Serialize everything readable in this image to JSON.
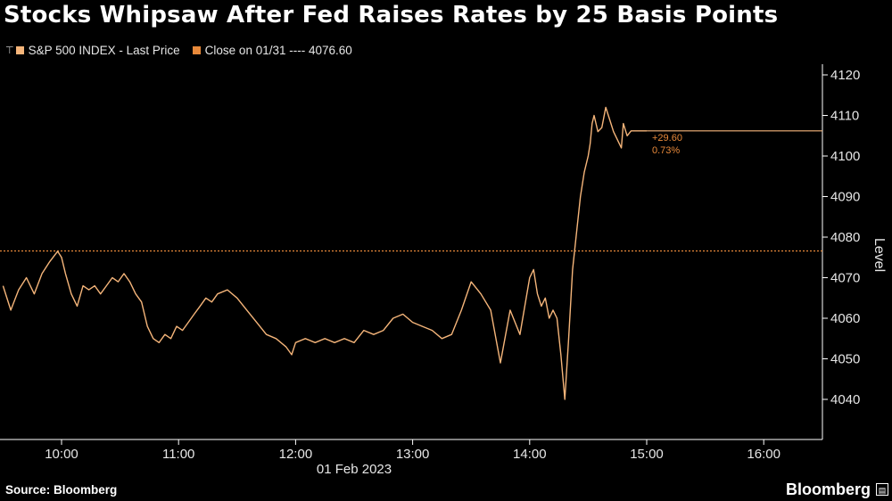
{
  "title": "Stocks Whipsaw After Fed Raises Rates by 25 Basis Points",
  "legend": {
    "series_label": "S&P 500 INDEX - Last Price",
    "close_label": "Close on 01/31 ---- 4076.60"
  },
  "colors": {
    "background": "#000000",
    "line": "#f5b57a",
    "close_line": "#e8893a",
    "annotation": "#e8893a",
    "axis": "#ffffff",
    "text": "#e6e6e6"
  },
  "source": "Source: Bloomberg",
  "brand": "Bloomberg",
  "chart_data": {
    "type": "line",
    "title": "Stocks Whipsaw After Fed Raises Rates by 25 Basis Points",
    "ylabel": "Level",
    "xlabel": "01 Feb 2023",
    "ylim": [
      4032,
      4122
    ],
    "xlim": [
      "09:30",
      "16:30"
    ],
    "y_ticks": [
      4040,
      4050,
      4060,
      4070,
      4080,
      4090,
      4100,
      4110,
      4120
    ],
    "x_ticks": [
      "10:00",
      "11:00",
      "12:00",
      "13:00",
      "14:00",
      "15:00",
      "16:00"
    ],
    "date_label": "01 Feb 2023",
    "reference_line": {
      "label": "Close on 01/31",
      "value": 4076.6
    },
    "last_value_line": 4106.2,
    "annotations": [
      "+29.60",
      "0.73%"
    ],
    "legend_position": "top-left",
    "grid": false,
    "series": [
      {
        "name": "S&P 500 INDEX - Last Price",
        "x": [
          "09:30",
          "09:34",
          "09:38",
          "09:42",
          "09:46",
          "09:50",
          "09:54",
          "09:58",
          "10:00",
          "10:02",
          "10:05",
          "10:08",
          "10:11",
          "10:14",
          "10:17",
          "10:20",
          "10:23",
          "10:26",
          "10:29",
          "10:32",
          "10:35",
          "10:38",
          "10:41",
          "10:44",
          "10:47",
          "10:50",
          "10:53",
          "10:56",
          "10:59",
          "11:02",
          "11:05",
          "11:08",
          "11:11",
          "11:14",
          "11:17",
          "11:20",
          "11:25",
          "11:30",
          "11:35",
          "11:40",
          "11:45",
          "11:50",
          "11:55",
          "11:58",
          "12:00",
          "12:05",
          "12:10",
          "12:15",
          "12:20",
          "12:25",
          "12:30",
          "12:35",
          "12:40",
          "12:45",
          "12:50",
          "12:55",
          "13:00",
          "13:05",
          "13:10",
          "13:15",
          "13:20",
          "13:25",
          "13:30",
          "13:35",
          "13:40",
          "13:45",
          "13:50",
          "13:55",
          "14:00",
          "14:02",
          "14:04",
          "14:06",
          "14:08",
          "14:10",
          "14:12",
          "14:14",
          "14:16",
          "14:18",
          "14:20",
          "14:22",
          "14:24",
          "14:26",
          "14:28",
          "14:30",
          "14:31",
          "14:32",
          "14:33",
          "14:35",
          "14:37",
          "14:39",
          "14:41",
          "14:43",
          "14:45",
          "14:47",
          "14:48",
          "14:50",
          "14:52",
          "14:53",
          "14:55",
          "14:56",
          "14:57",
          "14:58",
          "15:00"
        ],
        "values": [
          4068,
          4062,
          4067,
          4070,
          4066,
          4071,
          4074,
          4076.5,
          4075,
          4071,
          4066,
          4063,
          4068,
          4067,
          4068,
          4066,
          4068,
          4070,
          4069,
          4071,
          4069,
          4066,
          4064,
          4058,
          4055,
          4054,
          4056,
          4055,
          4058,
          4057,
          4059,
          4061,
          4063,
          4065,
          4064,
          4066,
          4067,
          4065,
          4062,
          4059,
          4056,
          4055,
          4053,
          4051,
          4054,
          4055,
          4054,
          4055,
          4054,
          4055,
          4054,
          4057,
          4056,
          4057,
          4060,
          4061,
          4059,
          4058,
          4057,
          4055,
          4056,
          4062,
          4069,
          4066,
          4062,
          4049,
          4062,
          4056,
          4070,
          4072,
          4066,
          4063,
          4065,
          4060,
          4062,
          4060,
          4051,
          4040,
          4055,
          4072,
          4081,
          4090,
          4096,
          4100,
          4103,
          4108,
          4110,
          4106,
          4107,
          4112,
          4109,
          4106,
          4104,
          4102,
          4108,
          4105,
          4106.2,
          4106.2,
          4106.2,
          4106.2,
          4106.2,
          4106.2,
          4106.2
        ]
      }
    ]
  }
}
